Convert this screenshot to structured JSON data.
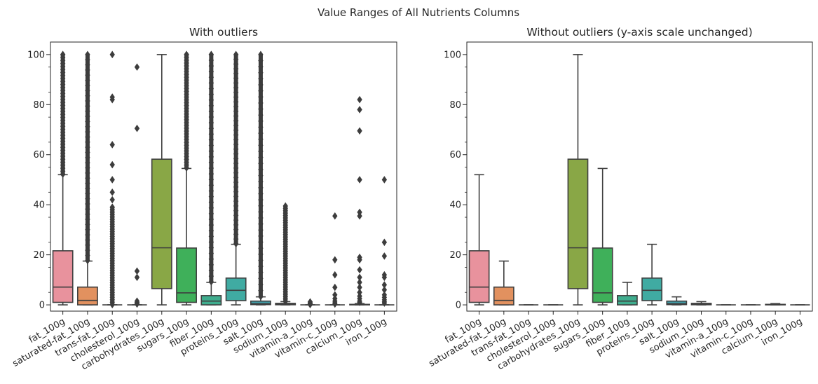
{
  "figure": {
    "title": "Value Ranges of All Nutrients Columns"
  },
  "colors": {
    "palette": [
      "#e8929d",
      "#e2915f",
      "#c1993f",
      "#a6a33f",
      "#89a746",
      "#3fb05a",
      "#3fad8e",
      "#40aba2",
      "#41a8b3",
      "#3f9ec8",
      "#9e9cd9",
      "#c58de1",
      "#e186d0",
      "#e88baf"
    ],
    "outline": "#3f3f3f",
    "text": "#262626"
  },
  "chart_data": [
    {
      "type": "box",
      "title": "With outliers",
      "xlabel": "",
      "ylabel": "",
      "ylim": [
        -2.5,
        105
      ],
      "yticks": [
        0,
        20,
        40,
        60,
        80,
        100
      ],
      "categories": [
        "fat_100g",
        "saturated-fat_100g",
        "trans-fat_100g",
        "cholesterol_100g",
        "carbohydrates_100g",
        "sugars_100g",
        "fiber_100g",
        "proteins_100g",
        "salt_100g",
        "sodium_100g",
        "vitamin-a_100g",
        "vitamin-c_100g",
        "calcium_100g",
        "iron_100g"
      ],
      "boxes": [
        {
          "q1": 1.0,
          "median": 7.1,
          "q3": 21.6,
          "whislo": 0,
          "whishi": 52.0,
          "outlier_range": [
            52.2,
            100
          ]
        },
        {
          "q1": 0.0,
          "median": 1.8,
          "q3": 7.1,
          "whislo": 0,
          "whishi": 17.5,
          "outlier_range": [
            17.7,
            100
          ]
        },
        {
          "q1": 0.0,
          "median": 0.0,
          "q3": 0.0,
          "whislo": 0,
          "whishi": 0,
          "outlier_range": [
            0.1,
            39
          ],
          "outliers": [
            100,
            83,
            82,
            64,
            56,
            50,
            45,
            42
          ]
        },
        {
          "q1": 0.0,
          "median": 0.0,
          "q3": 0.0,
          "whislo": 0,
          "whishi": 0,
          "outliers": [
            95,
            70.5,
            13.5,
            11,
            1.5,
            1,
            0.6,
            0.3
          ]
        },
        {
          "q1": 6.5,
          "median": 22.8,
          "q3": 58.2,
          "whislo": 0,
          "whishi": 100
        },
        {
          "q1": 1.0,
          "median": 4.8,
          "q3": 22.7,
          "whislo": 0,
          "whishi": 54.5,
          "outlier_range": [
            54.7,
            100
          ]
        },
        {
          "q1": 0.0,
          "median": 1.5,
          "q3": 3.7,
          "whislo": 0,
          "whishi": 9.0,
          "outlier_range": [
            9.2,
            100
          ]
        },
        {
          "q1": 1.7,
          "median": 5.8,
          "q3": 10.7,
          "whislo": 0,
          "whishi": 24.2,
          "outlier_range": [
            24.4,
            100
          ]
        },
        {
          "q1": 0.1,
          "median": 0.6,
          "q3": 1.5,
          "whislo": 0,
          "whishi": 3.2,
          "outlier_range": [
            3.3,
            100
          ]
        },
        {
          "q1": 0.05,
          "median": 0.25,
          "q3": 0.6,
          "whislo": 0,
          "whishi": 1.3,
          "outlier_range": [
            1.4,
            39.5
          ]
        },
        {
          "q1": 0.0,
          "median": 0.0,
          "q3": 0.0,
          "whislo": 0,
          "whishi": 0,
          "outliers": [
            1.2,
            0.8,
            0.5,
            0.3,
            0.1
          ]
        },
        {
          "q1": 0.0,
          "median": 0.0,
          "q3": 0.0,
          "whislo": 0,
          "whishi": 0,
          "outliers": [
            35.5,
            18,
            12,
            7,
            4,
            2.5,
            1.5,
            0.8,
            0.3
          ]
        },
        {
          "q1": 0.0,
          "median": 0.1,
          "q3": 0.2,
          "whislo": 0,
          "whishi": 0.5,
          "outliers": [
            82,
            78,
            69.5,
            50,
            37,
            35.5,
            19,
            18,
            14,
            11,
            9,
            7,
            5,
            3.5,
            2.5,
            1.5,
            1
          ]
        },
        {
          "q1": 0.0,
          "median": 0.0,
          "q3": 0.0,
          "whislo": 0,
          "whishi": 0,
          "outliers": [
            50,
            25,
            19.5,
            12,
            11,
            8,
            6,
            4,
            3,
            2,
            1.2,
            0.7
          ]
        }
      ]
    },
    {
      "type": "box",
      "title": "Without outliers (y-axis scale unchanged)",
      "xlabel": "",
      "ylabel": "",
      "ylim": [
        -2.5,
        105
      ],
      "yticks": [
        0,
        20,
        40,
        60,
        80,
        100
      ],
      "categories": [
        "fat_100g",
        "saturated-fat_100g",
        "trans-fat_100g",
        "cholesterol_100g",
        "carbohydrates_100g",
        "sugars_100g",
        "fiber_100g",
        "proteins_100g",
        "salt_100g",
        "sodium_100g",
        "vitamin-a_100g",
        "vitamin-c_100g",
        "calcium_100g",
        "iron_100g"
      ],
      "boxes": [
        {
          "q1": 1.0,
          "median": 7.1,
          "q3": 21.6,
          "whislo": 0,
          "whishi": 52.0
        },
        {
          "q1": 0.0,
          "median": 1.8,
          "q3": 7.1,
          "whislo": 0,
          "whishi": 17.5
        },
        {
          "q1": 0.0,
          "median": 0.0,
          "q3": 0.0,
          "whislo": 0,
          "whishi": 0
        },
        {
          "q1": 0.0,
          "median": 0.0,
          "q3": 0.0,
          "whislo": 0,
          "whishi": 0
        },
        {
          "q1": 6.5,
          "median": 22.8,
          "q3": 58.2,
          "whislo": 0,
          "whishi": 100
        },
        {
          "q1": 1.0,
          "median": 4.8,
          "q3": 22.7,
          "whislo": 0,
          "whishi": 54.5
        },
        {
          "q1": 0.0,
          "median": 1.5,
          "q3": 3.7,
          "whislo": 0,
          "whishi": 9.0
        },
        {
          "q1": 1.7,
          "median": 5.8,
          "q3": 10.7,
          "whislo": 0,
          "whishi": 24.2
        },
        {
          "q1": 0.1,
          "median": 0.6,
          "q3": 1.5,
          "whislo": 0,
          "whishi": 3.2
        },
        {
          "q1": 0.05,
          "median": 0.25,
          "q3": 0.6,
          "whislo": 0,
          "whishi": 1.3
        },
        {
          "q1": 0.0,
          "median": 0.0,
          "q3": 0.0,
          "whislo": 0,
          "whishi": 0
        },
        {
          "q1": 0.0,
          "median": 0.0,
          "q3": 0.0,
          "whislo": 0,
          "whishi": 0
        },
        {
          "q1": 0.0,
          "median": 0.1,
          "q3": 0.2,
          "whislo": 0,
          "whishi": 0.5
        },
        {
          "q1": 0.0,
          "median": 0.0,
          "q3": 0.0,
          "whislo": 0,
          "whishi": 0
        }
      ]
    }
  ]
}
